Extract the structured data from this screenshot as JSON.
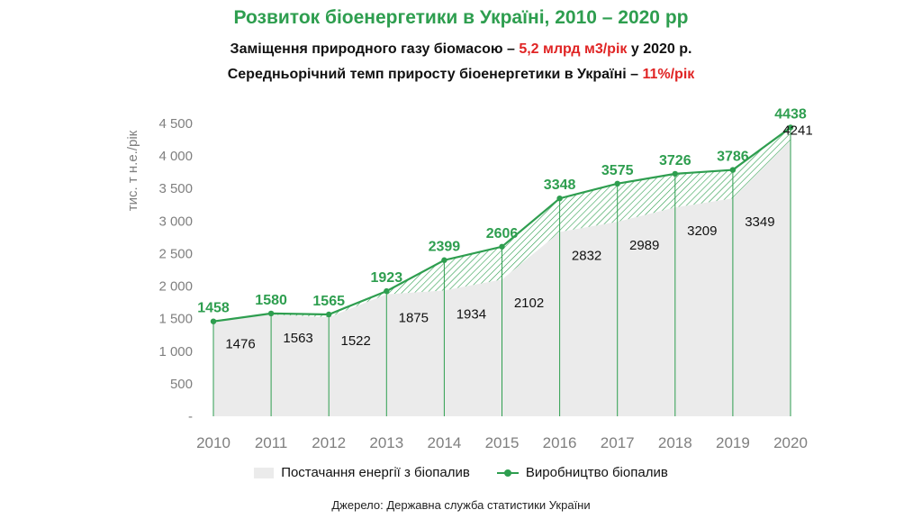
{
  "header": {
    "title": "Розвиток  біоенергетики в Україні, 2010 – 2020 рр",
    "sub1_prefix": "Заміщення природного газу біомасою – ",
    "sub1_highlight": "5,2 млрд м3/рік",
    "sub1_suffix": " у 2020 р.",
    "sub2_prefix": "Середньорічний темп приросту біоенергетики в Україні – ",
    "sub2_highlight": "11%/рік"
  },
  "colors": {
    "green": "#2e9e4f",
    "red": "#e02424",
    "area": "#ebebeb",
    "hatch": "#2e9e4f",
    "axis_text": "#7f7f7f"
  },
  "source": "Джерело: Державна служба статистики України",
  "chart_data": {
    "type": "area",
    "categories": [
      "2010",
      "2011",
      "2012",
      "2013",
      "2014",
      "2015",
      "2016",
      "2017",
      "2018",
      "2019",
      "2020"
    ],
    "ylabel": "тис. т н.е./рік",
    "ylim": [
      0,
      4500
    ],
    "yticks": [
      0,
      500,
      1000,
      1500,
      2000,
      2500,
      3000,
      3500,
      4000,
      4500
    ],
    "ytick_labels": [
      "-",
      "500",
      "1 000",
      "1 500",
      "2 000",
      "2 500",
      "3 000",
      "3 500",
      "4 000",
      "4 500"
    ],
    "grid": false,
    "legend_position": "bottom",
    "series": [
      {
        "name": "Постачання енергії з біопалив",
        "kind": "area",
        "values": [
          1476,
          1563,
          1522,
          1875,
          1934,
          2102,
          2832,
          2989,
          3209,
          3349,
          4241
        ]
      },
      {
        "name": "Виробництво біопалив",
        "kind": "line-marker",
        "values": [
          1458,
          1580,
          1565,
          1923,
          2399,
          2606,
          3348,
          3575,
          3726,
          3786,
          4438
        ]
      }
    ]
  }
}
